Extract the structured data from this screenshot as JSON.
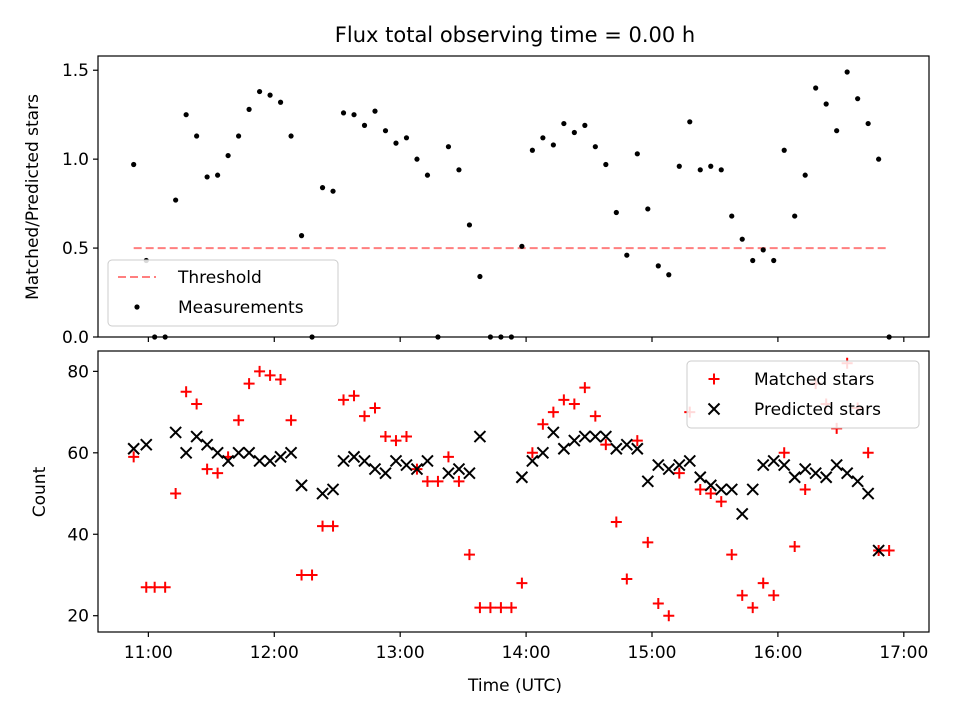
{
  "chart_data": [
    {
      "type": "scatter",
      "title": "Flux total observing time = 0.00 h",
      "xlabel": "",
      "ylabel": "Matched/Predicted stars",
      "xlim": [
        "10:36",
        "17:12"
      ],
      "ylim": [
        0,
        1.58
      ],
      "yticks": [
        0.0,
        0.5,
        1.0,
        1.5
      ],
      "ytick_labels": [
        "0.0",
        "0.5",
        "1.0",
        "1.5"
      ],
      "xticks": [
        "11:00",
        "12:00",
        "13:00",
        "14:00",
        "15:00",
        "16:00",
        "17:00"
      ],
      "legend_position": "lower-left",
      "threshold": {
        "name": "Threshold",
        "value": 0.5,
        "x_range": [
          "10:53",
          "16:53"
        ],
        "color": "#ff7f7f",
        "style": "dashed"
      },
      "series": [
        {
          "name": "Measurements",
          "color": "#000000",
          "marker": "dot",
          "points": [
            [
              "10:53",
              0.97
            ],
            [
              "10:59",
              0.43
            ],
            [
              "11:03",
              0.0
            ],
            [
              "11:08",
              0.0
            ],
            [
              "11:13",
              0.77
            ],
            [
              "11:18",
              1.25
            ],
            [
              "11:23",
              1.13
            ],
            [
              "11:28",
              0.9
            ],
            [
              "11:33",
              0.91
            ],
            [
              "11:38",
              1.02
            ],
            [
              "11:43",
              1.13
            ],
            [
              "11:48",
              1.28
            ],
            [
              "11:53",
              1.38
            ],
            [
              "11:58",
              1.36
            ],
            [
              "12:03",
              1.32
            ],
            [
              "12:08",
              1.13
            ],
            [
              "12:13",
              0.57
            ],
            [
              "12:18",
              0.0
            ],
            [
              "12:23",
              0.84
            ],
            [
              "12:28",
              0.82
            ],
            [
              "12:33",
              1.26
            ],
            [
              "12:38",
              1.25
            ],
            [
              "12:43",
              1.19
            ],
            [
              "12:48",
              1.27
            ],
            [
              "12:53",
              1.16
            ],
            [
              "12:58",
              1.09
            ],
            [
              "13:03",
              1.12
            ],
            [
              "13:08",
              1.0
            ],
            [
              "13:13",
              0.91
            ],
            [
              "13:18",
              0.0
            ],
            [
              "13:23",
              1.07
            ],
            [
              "13:28",
              0.94
            ],
            [
              "13:33",
              0.63
            ],
            [
              "13:38",
              0.34
            ],
            [
              "13:43",
              0.0
            ],
            [
              "13:48",
              0.0
            ],
            [
              "13:53",
              0.0
            ],
            [
              "13:58",
              0.51
            ],
            [
              "14:03",
              1.05
            ],
            [
              "14:08",
              1.12
            ],
            [
              "14:13",
              1.08
            ],
            [
              "14:18",
              1.2
            ],
            [
              "14:23",
              1.15
            ],
            [
              "14:28",
              1.19
            ],
            [
              "14:33",
              1.07
            ],
            [
              "14:38",
              0.97
            ],
            [
              "14:43",
              0.7
            ],
            [
              "14:48",
              0.46
            ],
            [
              "14:53",
              1.03
            ],
            [
              "14:58",
              0.72
            ],
            [
              "15:03",
              0.4
            ],
            [
              "15:08",
              0.35
            ],
            [
              "15:13",
              0.96
            ],
            [
              "15:18",
              1.21
            ],
            [
              "15:23",
              0.94
            ],
            [
              "15:28",
              0.96
            ],
            [
              "15:33",
              0.94
            ],
            [
              "15:38",
              0.68
            ],
            [
              "15:43",
              0.55
            ],
            [
              "15:48",
              0.43
            ],
            [
              "15:53",
              0.49
            ],
            [
              "15:58",
              0.43
            ],
            [
              "16:03",
              1.05
            ],
            [
              "16:08",
              0.68
            ],
            [
              "16:13",
              0.91
            ],
            [
              "16:18",
              1.4
            ],
            [
              "16:23",
              1.31
            ],
            [
              "16:28",
              1.16
            ],
            [
              "16:33",
              1.49
            ],
            [
              "16:38",
              1.34
            ],
            [
              "16:43",
              1.2
            ],
            [
              "16:48",
              1.0
            ],
            [
              "16:53",
              0.0
            ]
          ]
        }
      ]
    },
    {
      "type": "scatter",
      "title": "",
      "xlabel": "Time (UTC)",
      "ylabel": "Count",
      "xlim": [
        "10:36",
        "17:12"
      ],
      "ylim": [
        16,
        85
      ],
      "yticks": [
        20,
        40,
        60,
        80
      ],
      "ytick_labels": [
        "20",
        "40",
        "60",
        "80"
      ],
      "xticks": [
        "11:00",
        "12:00",
        "13:00",
        "14:00",
        "15:00",
        "16:00",
        "17:00"
      ],
      "xtick_labels": [
        "11:00",
        "12:00",
        "13:00",
        "14:00",
        "15:00",
        "16:00",
        "17:00"
      ],
      "legend_position": "upper-right",
      "series": [
        {
          "name": "Matched stars",
          "color": "#ff0000",
          "marker": "plus",
          "points": [
            [
              "10:53",
              59
            ],
            [
              "10:59",
              27
            ],
            [
              "11:03",
              27
            ],
            [
              "11:08",
              27
            ],
            [
              "11:13",
              50
            ],
            [
              "11:18",
              75
            ],
            [
              "11:23",
              72
            ],
            [
              "11:28",
              56
            ],
            [
              "11:33",
              55
            ],
            [
              "11:38",
              59
            ],
            [
              "11:43",
              68
            ],
            [
              "11:48",
              77
            ],
            [
              "11:53",
              80
            ],
            [
              "11:58",
              79
            ],
            [
              "12:03",
              78
            ],
            [
              "12:08",
              68
            ],
            [
              "12:13",
              30
            ],
            [
              "12:18",
              30
            ],
            [
              "12:23",
              42
            ],
            [
              "12:28",
              42
            ],
            [
              "12:33",
              73
            ],
            [
              "12:38",
              74
            ],
            [
              "12:43",
              69
            ],
            [
              "12:48",
              71
            ],
            [
              "12:53",
              64
            ],
            [
              "12:58",
              63
            ],
            [
              "13:03",
              64
            ],
            [
              "13:08",
              56
            ],
            [
              "13:13",
              53
            ],
            [
              "13:18",
              53
            ],
            [
              "13:23",
              59
            ],
            [
              "13:28",
              53
            ],
            [
              "13:33",
              35
            ],
            [
              "13:38",
              22
            ],
            [
              "13:43",
              22
            ],
            [
              "13:48",
              22
            ],
            [
              "13:53",
              22
            ],
            [
              "13:58",
              28
            ],
            [
              "14:03",
              60
            ],
            [
              "14:08",
              67
            ],
            [
              "14:13",
              70
            ],
            [
              "14:18",
              73
            ],
            [
              "14:23",
              72
            ],
            [
              "14:28",
              76
            ],
            [
              "14:33",
              69
            ],
            [
              "14:38",
              62
            ],
            [
              "14:43",
              43
            ],
            [
              "14:48",
              29
            ],
            [
              "14:53",
              63
            ],
            [
              "14:58",
              38
            ],
            [
              "15:03",
              23
            ],
            [
              "15:08",
              20
            ],
            [
              "15:13",
              55
            ],
            [
              "15:18",
              70
            ],
            [
              "15:23",
              51
            ],
            [
              "15:28",
              50
            ],
            [
              "15:33",
              48
            ],
            [
              "15:38",
              35
            ],
            [
              "15:43",
              25
            ],
            [
              "15:48",
              22
            ],
            [
              "15:53",
              28
            ],
            [
              "15:58",
              25
            ],
            [
              "16:03",
              60
            ],
            [
              "16:08",
              37
            ],
            [
              "16:13",
              51
            ],
            [
              "16:18",
              77
            ],
            [
              "16:23",
              72
            ],
            [
              "16:28",
              66
            ],
            [
              "16:33",
              82
            ],
            [
              "16:38",
              71
            ],
            [
              "16:43",
              60
            ],
            [
              "16:48",
              36
            ],
            [
              "16:53",
              36
            ]
          ]
        },
        {
          "name": "Predicted stars",
          "color": "#000000",
          "marker": "x",
          "points": [
            [
              "10:53",
              61
            ],
            [
              "10:59",
              62
            ],
            [
              "11:13",
              65
            ],
            [
              "11:18",
              60
            ],
            [
              "11:23",
              64
            ],
            [
              "11:28",
              62
            ],
            [
              "11:33",
              60
            ],
            [
              "11:38",
              58
            ],
            [
              "11:43",
              60
            ],
            [
              "11:48",
              60
            ],
            [
              "11:53",
              58
            ],
            [
              "11:58",
              58
            ],
            [
              "12:03",
              59
            ],
            [
              "12:08",
              60
            ],
            [
              "12:13",
              52
            ],
            [
              "12:23",
              50
            ],
            [
              "12:28",
              51
            ],
            [
              "12:33",
              58
            ],
            [
              "12:38",
              59
            ],
            [
              "12:43",
              58
            ],
            [
              "12:48",
              56
            ],
            [
              "12:53",
              55
            ],
            [
              "12:58",
              58
            ],
            [
              "13:03",
              57
            ],
            [
              "13:08",
              56
            ],
            [
              "13:13",
              58
            ],
            [
              "13:23",
              55
            ],
            [
              "13:28",
              56
            ],
            [
              "13:33",
              55
            ],
            [
              "13:38",
              64
            ],
            [
              "13:58",
              54
            ],
            [
              "14:03",
              58
            ],
            [
              "14:08",
              60
            ],
            [
              "14:13",
              65
            ],
            [
              "14:18",
              61
            ],
            [
              "14:23",
              63
            ],
            [
              "14:28",
              64
            ],
            [
              "14:33",
              64
            ],
            [
              "14:38",
              64
            ],
            [
              "14:43",
              61
            ],
            [
              "14:48",
              62
            ],
            [
              "14:53",
              61
            ],
            [
              "14:58",
              53
            ],
            [
              "15:03",
              57
            ],
            [
              "15:08",
              56
            ],
            [
              "15:13",
              57
            ],
            [
              "15:18",
              58
            ],
            [
              "15:23",
              54
            ],
            [
              "15:28",
              52
            ],
            [
              "15:33",
              51
            ],
            [
              "15:38",
              51
            ],
            [
              "15:43",
              45
            ],
            [
              "15:48",
              51
            ],
            [
              "15:53",
              57
            ],
            [
              "15:58",
              58
            ],
            [
              "16:03",
              57
            ],
            [
              "16:08",
              54
            ],
            [
              "16:13",
              56
            ],
            [
              "16:18",
              55
            ],
            [
              "16:23",
              54
            ],
            [
              "16:28",
              57
            ],
            [
              "16:33",
              55
            ],
            [
              "16:38",
              53
            ],
            [
              "16:43",
              50
            ],
            [
              "16:48",
              36
            ]
          ]
        }
      ]
    }
  ]
}
